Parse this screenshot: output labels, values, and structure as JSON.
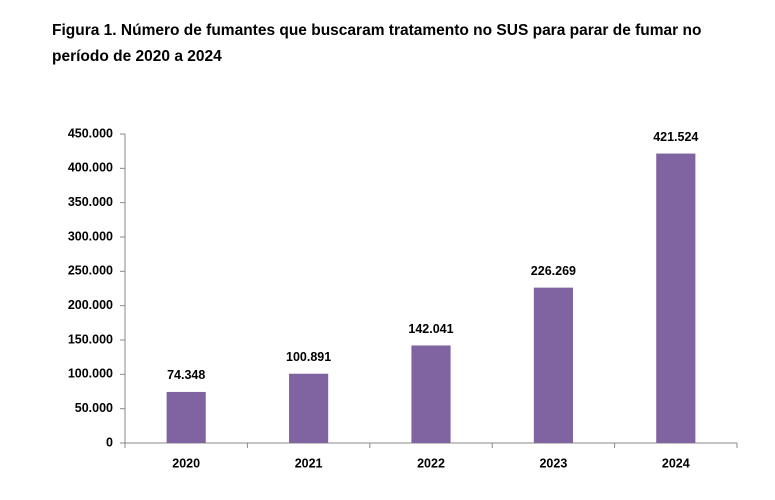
{
  "chart_data": {
    "type": "bar",
    "title": "Figura 1. Número de fumantes que buscaram tratamento no SUS para parar de fumar no período de 2020 a 2024",
    "categories": [
      "2020",
      "2021",
      "2022",
      "2023",
      "2024"
    ],
    "values": [
      74348,
      100891,
      142041,
      226269,
      421524
    ],
    "value_labels": [
      "74.348",
      "100.891",
      "142.041",
      "226.269",
      "421.524"
    ],
    "color": "#8064a2",
    "ylim": [
      0,
      450000
    ],
    "yticks": [
      0,
      {
        "value": 50000,
        "label": "50.000"
      },
      {
        "value": 100000,
        "label": "100.000"
      },
      {
        "value": 150000,
        "label": "150.000"
      },
      {
        "value": 200000,
        "label": "200.000"
      },
      {
        "value": 250000,
        "label": "250.000"
      },
      {
        "value": 300000,
        "label": "300.000"
      },
      {
        "value": 350000,
        "label": "350.000"
      },
      {
        "value": 400000,
        "label": "400.000"
      },
      {
        "value": 450000,
        "label": "450.000"
      }
    ],
    "grid": false
  }
}
